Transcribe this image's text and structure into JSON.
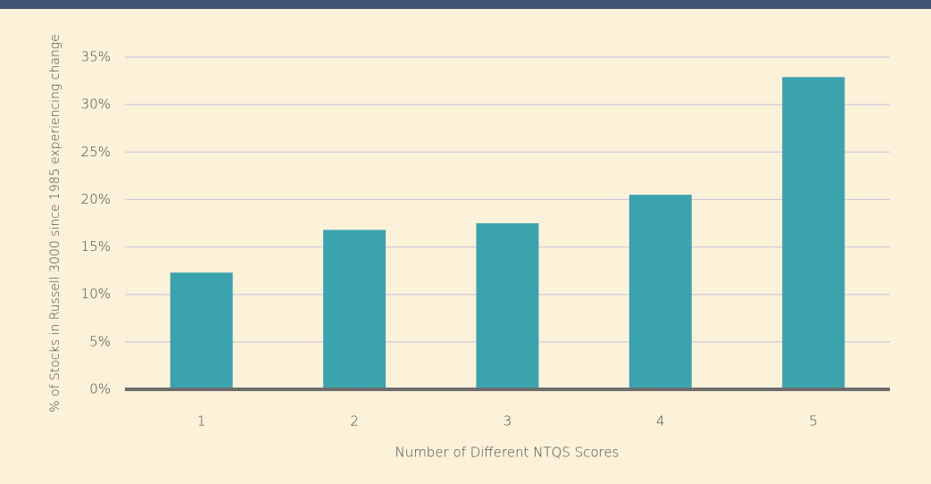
{
  "chart_data": {
    "type": "bar",
    "xlabel": "Number of Different NTQS Scores",
    "ylabel": "% of Stocks in Russell 3000 since 1985 experiencing change",
    "categories": [
      "1",
      "2",
      "3",
      "4",
      "5"
    ],
    "values": [
      12.3,
      16.8,
      17.5,
      20.5,
      32.9
    ],
    "color": "#3ba3ad",
    "ylim": [
      0,
      35
    ],
    "yticks": [
      {
        "value": 0,
        "label": "0%"
      },
      {
        "value": 5,
        "label": "5%"
      },
      {
        "value": 10,
        "label": "10%"
      },
      {
        "value": 15,
        "label": "15%"
      },
      {
        "value": 20,
        "label": "20%"
      },
      {
        "value": 25,
        "label": "25%"
      },
      {
        "value": 30,
        "label": "30%"
      },
      {
        "value": 35,
        "label": "35%"
      }
    ],
    "grid": true
  }
}
